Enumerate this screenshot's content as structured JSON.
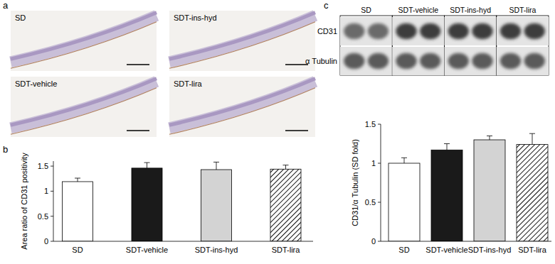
{
  "chart_data": [
    {
      "type": "bar",
      "title": "b",
      "categories": [
        "SD",
        "SDT-vehicle",
        "SDT-ins-hyd",
        "SDT-lira"
      ],
      "values": [
        1.19,
        1.46,
        1.43,
        1.44
      ],
      "errors": [
        0.07,
        0.11,
        0.15,
        0.08
      ],
      "colors": [
        "#ffffff",
        "#1a1a1a",
        "#d3d3d3",
        "#ffffff"
      ],
      "y_label": "Area ratio of CD31 positivity",
      "ylim": [
        0,
        1.6
      ],
      "yticks": [
        0,
        0.5,
        1,
        1.5
      ],
      "grid": false
    },
    {
      "type": "bar",
      "title": "c",
      "categories": [
        "SD",
        "SDT-vehicle",
        "SDT-ins-hyd",
        "SDT-lira"
      ],
      "values": [
        1.0,
        1.17,
        1.3,
        1.24
      ],
      "errors": [
        0.07,
        0.08,
        0.05,
        0.14
      ],
      "colors": [
        "#ffffff",
        "#1a1a1a",
        "#d3d3d3",
        "#ffffff"
      ],
      "y_label": "CD31/α Tubulin (SD fold)",
      "ylim": [
        0,
        1.5
      ],
      "yticks": [
        0,
        0.5,
        1,
        1.5
      ],
      "grid": false
    }
  ],
  "micrographs": {
    "panel_label": "a",
    "labels": [
      "SD",
      "SDT-ins-hyd",
      "SDT-vehicle",
      "SDT-lira"
    ]
  },
  "blot": {
    "groups": [
      "SD",
      "SDT-vehicle",
      "SDT-ins-hyd",
      "SDT-lira"
    ],
    "rows": [
      "CD31",
      "α Tubulin"
    ]
  }
}
